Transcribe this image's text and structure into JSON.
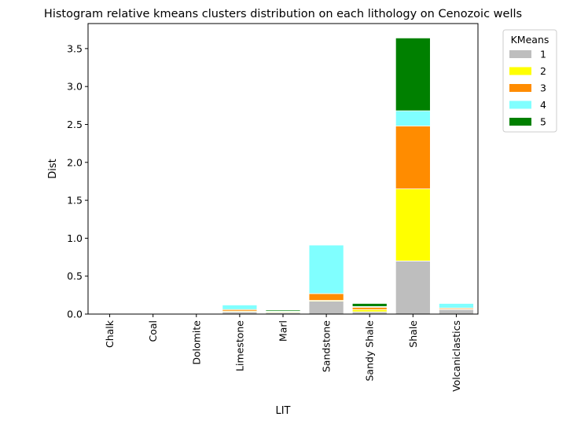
{
  "chart_data": {
    "type": "bar",
    "stacked": true,
    "title": "Histogram relative kmeans clusters distribution on each lithology on Cenozoic wells",
    "xlabel": "LIT",
    "ylabel": "Dist",
    "ylim": [
      0,
      3.83
    ],
    "yticks": [
      "0.0",
      "0.5",
      "1.0",
      "1.5",
      "2.0",
      "2.5",
      "3.0",
      "3.5"
    ],
    "yticks_values": [
      0,
      0.5,
      1.0,
      1.5,
      2.0,
      2.5,
      3.0,
      3.5
    ],
    "grid": false,
    "legend": {
      "title": "KMeans",
      "placement": "outside-top-right"
    },
    "categories": [
      "Chalk",
      "Coal",
      "Dolomite",
      "Limestone",
      "Marl",
      "Sandstone",
      "Sandy Shale",
      "Shale",
      "Volcaniclastics"
    ],
    "series": [
      {
        "name": "1",
        "color": "#bebebe",
        "values": [
          0.0,
          0.0,
          0.003,
          0.03,
          0.02,
          0.17,
          0.03,
          0.7,
          0.06
        ]
      },
      {
        "name": "2",
        "color": "#ffff00",
        "values": [
          0.0,
          0.0,
          0.003,
          0.01,
          0.01,
          0.01,
          0.03,
          0.95,
          0.005
        ]
      },
      {
        "name": "3",
        "color": "#ff8c00",
        "values": [
          0.0,
          0.0,
          0.005,
          0.02,
          0.0,
          0.09,
          0.03,
          0.83,
          0.015
        ]
      },
      {
        "name": "4",
        "color": "#80ffff",
        "values": [
          0.0,
          0.0,
          0.0,
          0.06,
          0.01,
          0.64,
          0.01,
          0.2,
          0.06
        ]
      },
      {
        "name": "5",
        "color": "#008000",
        "values": [
          0.0,
          0.0,
          0.0,
          0.0,
          0.015,
          0.0,
          0.04,
          0.96,
          0.0
        ]
      }
    ]
  }
}
